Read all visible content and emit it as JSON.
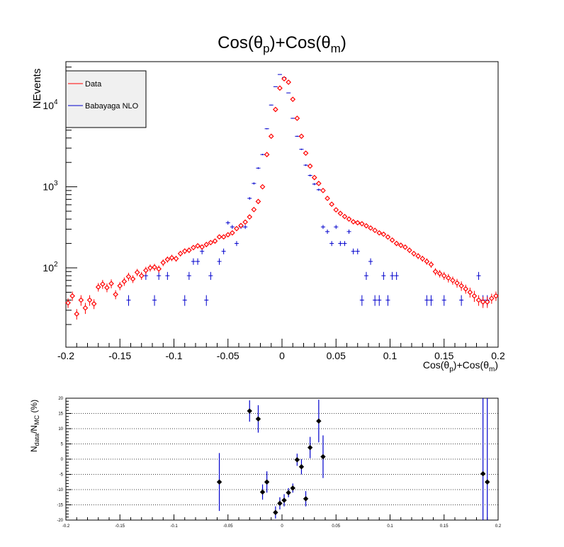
{
  "chart_data": [
    {
      "type": "scatter",
      "title": "Cos(θp)+Cos(θm)",
      "title_parts": {
        "pre": "Cos(θ",
        "sub1": "p",
        "mid": ")+Cos(θ",
        "sub2": "m",
        "post": ")"
      },
      "xlabel": "Cos(θp)+Cos(θm)",
      "xlabel_parts": {
        "pre": "Cos(θ",
        "sub1": "p",
        "mid": ")+Cos(θ",
        "sub2": "m",
        "post": ")"
      },
      "ylabel": "NEvents",
      "xlim": [
        -0.2,
        0.2
      ],
      "ylim": [
        10.5,
        35000
      ],
      "yscale": "log",
      "x_ticks": [
        -0.2,
        -0.15,
        -0.1,
        -0.05,
        0,
        0.05,
        0.1,
        0.15,
        0.2
      ],
      "x_tick_labels": [
        "-0.2",
        "-0.15",
        "-0.1",
        "-0.05",
        "0",
        "0.05",
        "0.1",
        "0.15",
        "0.2"
      ],
      "y_ticks": [
        100,
        1000,
        10000
      ],
      "y_tick_labels": [
        {
          "base": "10",
          "exp": "2"
        },
        {
          "base": "10",
          "exp": "3"
        },
        {
          "base": "10",
          "exp": "4"
        }
      ],
      "legend": {
        "placement": "top-left",
        "entries": [
          {
            "label": "Data",
            "color": "#ff0000"
          },
          {
            "label": "Babayaga NLO",
            "color": "#0000cc"
          }
        ]
      },
      "series": [
        {
          "name": "Data",
          "color": "#ff0000",
          "marker": "open-diamond",
          "x": [
            -0.198,
            -0.194,
            -0.19,
            -0.186,
            -0.182,
            -0.178,
            -0.174,
            -0.17,
            -0.166,
            -0.162,
            -0.158,
            -0.154,
            -0.15,
            -0.146,
            -0.142,
            -0.138,
            -0.134,
            -0.13,
            -0.126,
            -0.122,
            -0.118,
            -0.114,
            -0.11,
            -0.106,
            -0.102,
            -0.098,
            -0.094,
            -0.09,
            -0.086,
            -0.082,
            -0.078,
            -0.074,
            -0.07,
            -0.066,
            -0.062,
            -0.058,
            -0.054,
            -0.05,
            -0.046,
            -0.042,
            -0.038,
            -0.034,
            -0.03,
            -0.026,
            -0.022,
            -0.018,
            -0.014,
            -0.01,
            -0.006,
            -0.002,
            0.002,
            0.006,
            0.01,
            0.014,
            0.018,
            0.022,
            0.026,
            0.03,
            0.034,
            0.038,
            0.042,
            0.046,
            0.05,
            0.054,
            0.058,
            0.062,
            0.066,
            0.07,
            0.074,
            0.078,
            0.082,
            0.086,
            0.09,
            0.094,
            0.098,
            0.102,
            0.106,
            0.11,
            0.114,
            0.118,
            0.122,
            0.126,
            0.13,
            0.134,
            0.138,
            0.142,
            0.146,
            0.15,
            0.154,
            0.158,
            0.162,
            0.166,
            0.17,
            0.174,
            0.178,
            0.182,
            0.186,
            0.19,
            0.194,
            0.198
          ],
          "y": [
            37,
            45,
            27,
            40,
            32,
            40,
            36,
            58,
            63,
            57,
            64,
            47,
            60,
            68,
            78,
            73,
            88,
            80,
            93,
            100,
            102,
            97,
            116,
            127,
            133,
            130,
            150,
            161,
            165,
            178,
            187,
            181,
            194,
            205,
            214,
            241,
            241,
            256,
            270,
            305,
            333,
            367,
            425,
            524,
            659,
            1000,
            2500,
            4200,
            9000,
            16500,
            21500,
            19500,
            12000,
            7000,
            4200,
            2600,
            1800,
            1300,
            1100,
            900,
            720,
            610,
            520,
            470,
            430,
            400,
            370,
            360,
            350,
            330,
            310,
            290,
            270,
            260,
            240,
            220,
            200,
            190,
            180,
            165,
            150,
            140,
            130,
            120,
            110,
            90,
            85,
            80,
            75,
            70,
            65,
            60,
            55,
            50,
            45,
            40,
            38,
            38,
            42,
            45
          ],
          "err": [
            5,
            6,
            4,
            6,
            5,
            6,
            5,
            7,
            8,
            7,
            8,
            6,
            7,
            8,
            9,
            8,
            9,
            9,
            10,
            10,
            10,
            10,
            11,
            11,
            12,
            11,
            12,
            13,
            13,
            13,
            14,
            13,
            14,
            14,
            15,
            16,
            15,
            16,
            16,
            17,
            18,
            19,
            21,
            23,
            26,
            32,
            50,
            65,
            95,
            128,
            147,
            140,
            110,
            84,
            65,
            51,
            42,
            36,
            33,
            30,
            27,
            25,
            23,
            22,
            21,
            20,
            19,
            19,
            19,
            18,
            18,
            17,
            16,
            16,
            15,
            15,
            14,
            14,
            13,
            13,
            12,
            12,
            11,
            11,
            10,
            9,
            9,
            9,
            9,
            8,
            8,
            8,
            7,
            7,
            7,
            6,
            6,
            6,
            6,
            6
          ]
        },
        {
          "name": "Babayaga NLO",
          "color": "#0000cc",
          "marker": "cross",
          "x": [
            -0.142,
            -0.126,
            -0.118,
            -0.114,
            -0.106,
            -0.09,
            -0.086,
            -0.082,
            -0.078,
            -0.074,
            -0.07,
            -0.066,
            -0.058,
            -0.054,
            -0.05,
            -0.046,
            -0.042,
            -0.038,
            -0.034,
            -0.03,
            -0.026,
            -0.022,
            -0.018,
            -0.014,
            -0.01,
            -0.006,
            -0.002,
            0.002,
            0.006,
            0.01,
            0.014,
            0.018,
            0.022,
            0.026,
            0.03,
            0.034,
            0.038,
            0.042,
            0.046,
            0.05,
            0.054,
            0.058,
            0.062,
            0.066,
            0.07,
            0.074,
            0.078,
            0.082,
            0.086,
            0.09,
            0.094,
            0.098,
            0.102,
            0.106,
            0.134,
            0.138,
            0.15,
            0.166,
            0.182,
            0.186,
            0.19
          ],
          "y": [
            40,
            80,
            40,
            80,
            80,
            40,
            80,
            120,
            120,
            160,
            40,
            80,
            120,
            160,
            360,
            320,
            200,
            320,
            320,
            720,
            1100,
            1700,
            2500,
            5200,
            10200,
            17200,
            24300,
            22300,
            14400,
            7000,
            4200,
            2900,
            1850,
            1380,
            1080,
            920,
            320,
            280,
            200,
            320,
            200,
            200,
            280,
            160,
            160,
            40,
            80,
            120,
            40,
            40,
            80,
            40,
            80,
            80,
            40,
            40,
            40,
            40,
            80,
            40,
            40
          ],
          "err": [
            6,
            9,
            6,
            9,
            9,
            6,
            9,
            11,
            11,
            13,
            6,
            9,
            11,
            13,
            19,
            18,
            14,
            18,
            18,
            27,
            33,
            41,
            50,
            72,
            101,
            131,
            156,
            149,
            120,
            84,
            65,
            54,
            43,
            37,
            33,
            30,
            18,
            17,
            14,
            18,
            14,
            14,
            17,
            13,
            13,
            6,
            9,
            11,
            6,
            6,
            9,
            6,
            9,
            9,
            6,
            6,
            6,
            6,
            9,
            6,
            6
          ]
        }
      ]
    },
    {
      "type": "scatter",
      "title": "",
      "ylabel": "Ndata/NMC (%)",
      "ylabel_parts": {
        "a": "N",
        "asub": "data",
        "b": "/N",
        "bsub": "MC",
        "c": " (%)"
      },
      "xlabel": "",
      "xlim": [
        -0.2,
        0.2
      ],
      "ylim": [
        -20,
        20
      ],
      "grid": true,
      "x_ticks": [
        -0.2,
        -0.15,
        -0.1,
        -0.05,
        0,
        0.05,
        0.1,
        0.15,
        0.2
      ],
      "x_tick_labels": [
        "-0.2",
        "-0.15",
        "-0.1",
        "-0.05",
        "0",
        "0.05",
        "0.1",
        "0.15",
        "0.2"
      ],
      "y_ticks": [
        -20,
        -15,
        -10,
        -5,
        0,
        5,
        10,
        15,
        20
      ],
      "y_tick_labels": [
        "-20",
        "-15",
        "-10",
        "-5",
        "0",
        "5",
        "10",
        "15",
        "20"
      ],
      "series": [
        {
          "name": "",
          "color": "#000000",
          "marker": "filled-diamond",
          "x": [
            -0.058,
            -0.03,
            -0.022,
            -0.018,
            -0.014,
            -0.006,
            -0.002,
            0.002,
            0.006,
            0.01,
            0.014,
            0.018,
            0.022,
            0.026,
            0.034,
            0.038,
            0.186,
            0.19
          ],
          "y": [
            -7.5,
            15.8,
            13.2,
            -10.8,
            -7.5,
            -17.5,
            -14.5,
            -13.5,
            -11.0,
            -9.5,
            -0.2,
            -2.5,
            -13.0,
            3.8,
            12.5,
            0.8,
            -4.8,
            -7.5
          ],
          "err": [
            9.5,
            3.5,
            4.5,
            2.5,
            3.5,
            2.0,
            2.0,
            2.0,
            1.5,
            1.5,
            2.0,
            2.5,
            2.5,
            3.5,
            7.0,
            7.0,
            30,
            30
          ],
          "err_color": [
            "#0000cc",
            "#0000cc",
            "#0000cc",
            "#0000cc",
            "#0000cc",
            "#0000cc",
            "#0000cc",
            "#0000cc",
            "#0000cc",
            "#0000cc",
            "#0000cc",
            "#0000cc",
            "#0000cc",
            "#0000cc",
            "#0000cc",
            "#0000cc",
            "#0000cc",
            "#0000cc"
          ]
        }
      ]
    }
  ]
}
